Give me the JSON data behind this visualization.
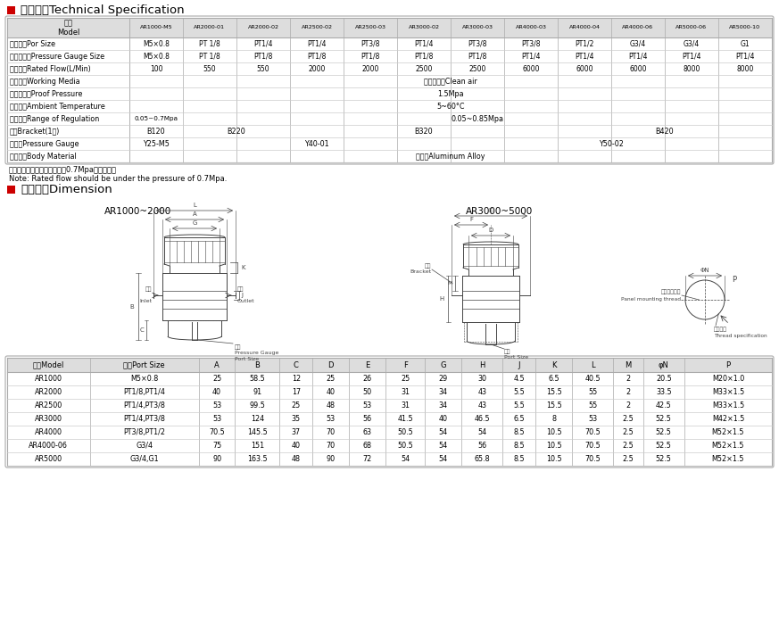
{
  "title1": "技术参数Technical Specification",
  "title2": "外型尺寸Dimension",
  "bg_color": "#ffffff",
  "table1_header_row": [
    "型号\nModel",
    "AR1000-M5",
    "AR2000-01",
    "AR2000-02",
    "AR2500-02",
    "AR2500-03",
    "AR3000-02",
    "AR3000-03",
    "AR4000-03",
    "AR4000-04",
    "AR4000-06",
    "AR5000-06",
    "AR5000-10"
  ],
  "table1_rows": [
    [
      "接管口径Por Size",
      "M5×0.8",
      "PT 1/8",
      "PT1/4",
      "PT1/4",
      "PT3/8",
      "PT1/4",
      "PT3/8",
      "PT3/8",
      "PT1/2",
      "G3/4",
      "G3/4",
      "G1"
    ],
    [
      "压力表口径Pressure Gauge Size",
      "M5×0.8",
      "PT 1/8",
      "PT1/8",
      "PT1/8",
      "PT1/8",
      "PT1/8",
      "PT1/8",
      "PT1/4",
      "PT1/4",
      "PT1/4",
      "PT1/4",
      "PT1/4"
    ],
    [
      "额定流量Rated Flow(L/Min)",
      "100",
      "550",
      "550",
      "2000",
      "2000",
      "2500",
      "2500",
      "6000",
      "6000",
      "6000",
      "8000",
      "8000"
    ],
    [
      "工作介质Working Media",
      "洁净的空气Clean air",
      "",
      "",
      "",
      "",
      "",
      "",
      "",
      "",
      "",
      "",
      ""
    ],
    [
      "保证耐压力Proof Pressure",
      "1.5Mpa",
      "",
      "",
      "",
      "",
      "",
      "",
      "",
      "",
      "",
      "",
      ""
    ],
    [
      "环境温度Ambient Temperature",
      "5~60°C",
      "",
      "",
      "",
      "",
      "",
      "",
      "",
      "",
      "",
      "",
      ""
    ],
    [
      "调压范围Range of Regulation",
      "0.05~0.7Mpa",
      "0.05~0.85Mpa",
      "",
      "",
      "",
      "",
      "",
      "",
      "",
      "",
      "",
      ""
    ],
    [
      "托架Bracket(1个)",
      "B120",
      "B220",
      "B320",
      "B420"
    ],
    [
      "压力表Pressure Gauge",
      "Y25-M5",
      "Y40-01",
      "Y50-02"
    ],
    [
      "本体材质Body Material",
      "铝合金Aluminum Alloy",
      "",
      "",
      "",
      "",
      "",
      "",
      "",
      "",
      "",
      "",
      ""
    ]
  ],
  "note1": "注：额定流量是在供应压力为0.7Mpa的情况下。",
  "note2": "Note: Rated flow should be under the pressure of 0.7Mpa.",
  "dim_title_left": "AR1000~2000",
  "dim_title_right": "AR3000~5000",
  "table2_header": [
    "型号Model",
    "口径Port Size",
    "A",
    "B",
    "C",
    "D",
    "E",
    "F",
    "G",
    "H",
    "J",
    "K",
    "L",
    "M",
    "φN",
    "P"
  ],
  "table2_rows": [
    [
      "AR1000",
      "M5×0.8",
      "25",
      "58.5",
      "12",
      "25",
      "26",
      "25",
      "29",
      "30",
      "4.5",
      "6.5",
      "40.5",
      "2",
      "20.5",
      "M20×1.0"
    ],
    [
      "AR2000",
      "PT1/8,PT1/4",
      "40",
      "91",
      "17",
      "40",
      "50",
      "31",
      "34",
      "43",
      "5.5",
      "15.5",
      "55",
      "2",
      "33.5",
      "M33×1.5"
    ],
    [
      "AR2500",
      "PT1/4,PT3/8",
      "53",
      "99.5",
      "25",
      "48",
      "53",
      "31",
      "34",
      "43",
      "5.5",
      "15.5",
      "55",
      "2",
      "42.5",
      "M33×1.5"
    ],
    [
      "AR3000",
      "PT1/4,PT3/8",
      "53",
      "124",
      "35",
      "53",
      "56",
      "41.5",
      "40",
      "46.5",
      "6.5",
      "8",
      "53",
      "2.5",
      "52.5",
      "M42×1.5"
    ],
    [
      "AR4000",
      "PT3/8,PT1/2",
      "70.5",
      "145.5",
      "37",
      "70",
      "63",
      "50.5",
      "54",
      "54",
      "8.5",
      "10.5",
      "70.5",
      "2.5",
      "52.5",
      "M52×1.5"
    ],
    [
      "AR4000-06",
      "G3/4",
      "75",
      "151",
      "40",
      "70",
      "68",
      "50.5",
      "54",
      "56",
      "8.5",
      "10.5",
      "70.5",
      "2.5",
      "52.5",
      "M52×1.5"
    ],
    [
      "AR5000",
      "G3/4,G1",
      "90",
      "163.5",
      "48",
      "90",
      "72",
      "54",
      "54",
      "65.8",
      "8.5",
      "10.5",
      "70.5",
      "2.5",
      "52.5",
      "M52×1.5"
    ]
  ]
}
